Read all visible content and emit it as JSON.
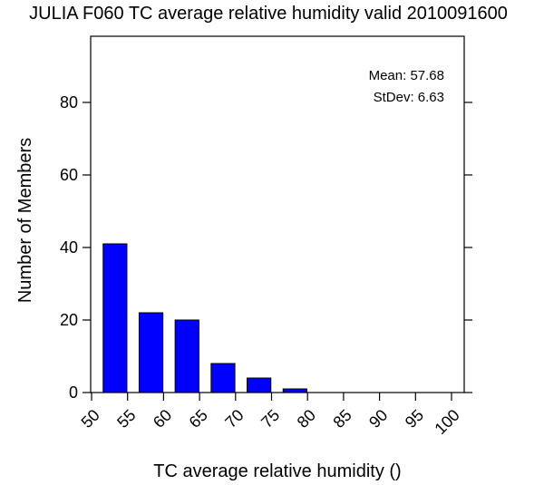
{
  "chart_data": {
    "type": "bar",
    "title": "JULIA F060 TC average relative humidity valid 2010091600",
    "xlabel": "TC average relative humidity ()",
    "ylabel": "Number of Members",
    "xlim": [
      50,
      100
    ],
    "ylim": [
      0,
      95
    ],
    "x_ticks": [
      "50",
      "55",
      "60",
      "65",
      "70",
      "75",
      "80",
      "85",
      "90",
      "95",
      "100"
    ],
    "y_ticks": [
      "0",
      "20",
      "40",
      "60",
      "80"
    ],
    "bins": [
      {
        "start": 50,
        "end": 55,
        "value": 41
      },
      {
        "start": 55,
        "end": 60,
        "value": 22
      },
      {
        "start": 60,
        "end": 65,
        "value": 20
      },
      {
        "start": 65,
        "end": 70,
        "value": 8
      },
      {
        "start": 70,
        "end": 75,
        "value": 4
      },
      {
        "start": 75,
        "end": 80,
        "value": 1
      },
      {
        "start": 80,
        "end": 85,
        "value": 0
      },
      {
        "start": 85,
        "end": 90,
        "value": 0
      },
      {
        "start": 90,
        "end": 95,
        "value": 0
      },
      {
        "start": 95,
        "end": 100,
        "value": 0
      }
    ],
    "bar_color": "#0000ff",
    "stats": {
      "mean": "Mean: 57.68",
      "stdev": "StDev: 6.63"
    },
    "grid": false
  }
}
